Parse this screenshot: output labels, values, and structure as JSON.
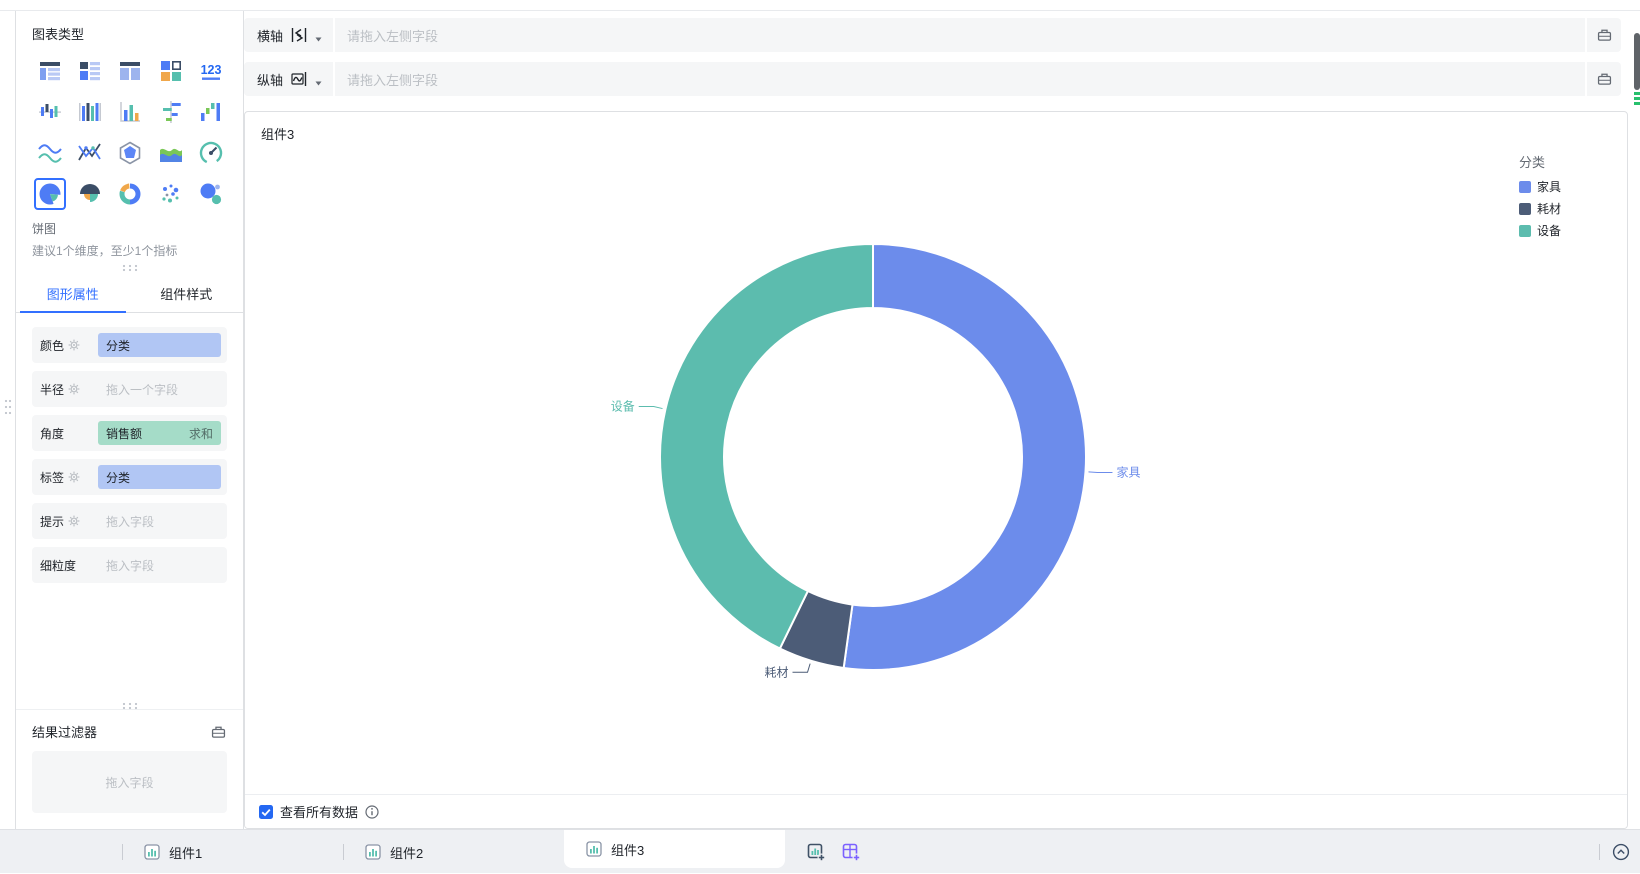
{
  "theme": {
    "primary": "#3370ff",
    "panel_bg": "#f5f6f7",
    "border": "#dee0e3",
    "text": "#1f2329",
    "text_secondary": "#646a73",
    "placeholder": "#bbbfc4",
    "chip_dimension_bg": "#b1c6f4",
    "chip_measure_bg": "#a5dcc8",
    "tabbar_bg": "#eef0f3",
    "checkbox_blue": "#2468f2"
  },
  "chart_type_panel": {
    "title": "图表类型",
    "selected_label": "饼图",
    "selected_hint": "建议1个维度，至少1个指标",
    "types": [
      {
        "name": "table-detail"
      },
      {
        "name": "table-group"
      },
      {
        "name": "table-pivot"
      },
      {
        "name": "card-grid"
      },
      {
        "name": "number-card"
      },
      {
        "name": "bar-grouped"
      },
      {
        "name": "bar-stacked"
      },
      {
        "name": "bar-basic"
      },
      {
        "name": "bar-horizontal"
      },
      {
        "name": "bar-waterfall"
      },
      {
        "name": "line"
      },
      {
        "name": "line-mix"
      },
      {
        "name": "radar"
      },
      {
        "name": "area"
      },
      {
        "name": "gauge"
      },
      {
        "name": "pie",
        "selected": true
      },
      {
        "name": "pie-rose"
      },
      {
        "name": "pie-donut"
      },
      {
        "name": "scatter"
      },
      {
        "name": "bubble"
      }
    ]
  },
  "style_panel": {
    "tabs": [
      {
        "label": "图形属性",
        "active": true
      },
      {
        "label": "组件样式",
        "active": false
      }
    ],
    "rows": [
      {
        "key": "color",
        "label": "颜色",
        "gear": true,
        "chips": [
          {
            "text": "分类",
            "type": "dimension"
          }
        ]
      },
      {
        "key": "radius",
        "label": "半径",
        "gear": true,
        "placeholder": "拖入一个字段"
      },
      {
        "key": "angle",
        "label": "角度",
        "gear": false,
        "chips": [
          {
            "text": "销售额",
            "agg": "求和",
            "type": "measure"
          }
        ]
      },
      {
        "key": "label",
        "label": "标签",
        "gear": true,
        "chips": [
          {
            "text": "分类",
            "type": "dimension"
          }
        ]
      },
      {
        "key": "tooltip",
        "label": "提示",
        "gear": true,
        "placeholder": "拖入字段"
      },
      {
        "key": "granularity",
        "label": "细粒度",
        "gear": false,
        "placeholder": "拖入字段"
      }
    ]
  },
  "result_filter": {
    "title": "结果过滤器",
    "placeholder": "拖入字段"
  },
  "axis_bar": {
    "rows": [
      {
        "label": "横轴",
        "icon": "dimension-axis-icon",
        "placeholder": "请拖入左侧字段"
      },
      {
        "label": "纵轴",
        "icon": "measure-axis-icon",
        "placeholder": "请拖入左侧字段"
      }
    ]
  },
  "canvas": {
    "title": "组件3",
    "checkbox": {
      "label": "查看所有数据",
      "checked": true
    }
  },
  "chart_data": {
    "type": "pie",
    "variant": "donut",
    "title": "组件3",
    "legend_title": "分类",
    "legend_position": "top-right",
    "categories": [
      "家具",
      "耗材",
      "设备"
    ],
    "values_percent": [
      52.2,
      5.0,
      42.8
    ],
    "colors": [
      "#6c8ceb",
      "#4c5c77",
      "#5cbcae"
    ],
    "start_angle_deg": 0,
    "direction": "clockwise",
    "inner_radius_ratio": 0.7,
    "slice_labels_visible": true
  },
  "tab_bar": {
    "tabs": [
      {
        "label": "组件1",
        "active": false
      },
      {
        "label": "组件2",
        "active": false
      },
      {
        "label": "组件3",
        "active": true
      }
    ]
  }
}
